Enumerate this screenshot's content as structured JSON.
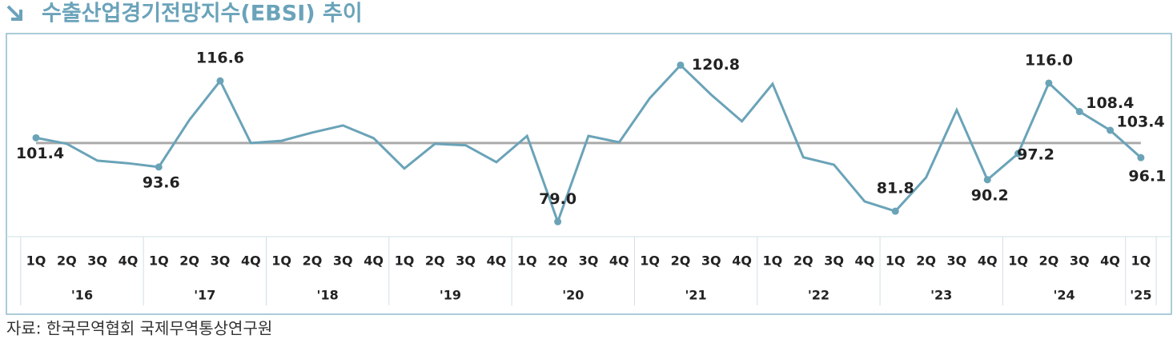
{
  "chart_data": {
    "type": "line",
    "title": "수출산업경기전망지수(EBSI) 추이",
    "source": "자료: 한국무역협회 국제무역통상연구원",
    "categories": [
      "1Q",
      "2Q",
      "3Q",
      "4Q",
      "1Q",
      "2Q",
      "3Q",
      "4Q",
      "1Q",
      "2Q",
      "3Q",
      "4Q",
      "1Q",
      "2Q",
      "3Q",
      "4Q",
      "1Q",
      "2Q",
      "3Q",
      "4Q",
      "1Q",
      "2Q",
      "3Q",
      "4Q",
      "1Q",
      "2Q",
      "3Q",
      "4Q",
      "1Q",
      "2Q",
      "3Q",
      "4Q",
      "1Q",
      "2Q",
      "3Q",
      "4Q",
      "1Q"
    ],
    "year_labels": [
      "'16",
      "'17",
      "'18",
      "'19",
      "'20",
      "'21",
      "'22",
      "'23",
      "'24",
      "'25"
    ],
    "series": [
      {
        "name": "EBSI",
        "color": "#6aa3b8",
        "values": [
          101.4,
          99.8,
          95.3,
          94.6,
          93.6,
          106.2,
          116.6,
          100.0,
          100.6,
          102.8,
          104.7,
          101.3,
          93.2,
          99.8,
          99.4,
          94.9,
          101.9,
          79.0,
          101.9,
          100.2,
          112.0,
          120.8,
          112.9,
          105.8,
          115.8,
          96.2,
          94.2,
          84.4,
          81.8,
          90.8,
          108.8,
          90.2,
          97.2,
          116.0,
          108.4,
          103.4,
          96.1
        ],
        "value_labels": [
          "101.4",
          null,
          null,
          null,
          "93.6",
          null,
          "116.6",
          null,
          null,
          null,
          null,
          null,
          null,
          null,
          null,
          null,
          null,
          "79.0",
          null,
          null,
          null,
          "120.8",
          null,
          null,
          null,
          null,
          null,
          null,
          "81.8",
          null,
          null,
          "90.2",
          "97.2",
          "116.0",
          "108.4",
          "103.4",
          "96.1"
        ]
      }
    ],
    "reference_line": 100,
    "reference_color": "#aaaaaa",
    "ylim": [
      75,
      128.8
    ]
  }
}
